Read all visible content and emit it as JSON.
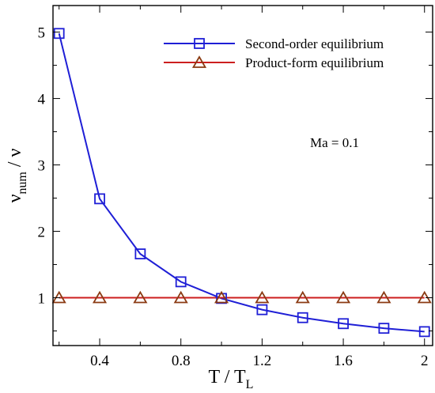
{
  "chart_data": {
    "type": "line",
    "xlabel": {
      "main": "T / T",
      "sub": "L"
    },
    "ylabel": {
      "main": "ν",
      "sub": "num",
      "rest": " / ν"
    },
    "xlim": [
      0.17,
      2.04
    ],
    "ylim": [
      0.28,
      5.4
    ],
    "xticks": [
      0.4,
      0.8,
      1.2,
      1.6,
      2
    ],
    "xtick_labels": [
      "0.4",
      "0.8",
      "1.2",
      "1.6",
      "2"
    ],
    "yticks": [
      1,
      2,
      3,
      4,
      5
    ],
    "ytick_labels": [
      "1",
      "2",
      "3",
      "4",
      "5"
    ],
    "grid": false,
    "legend_position": "top-right",
    "annotation": "Ma = 0.1",
    "series": [
      {
        "name": "Second-order equilibrium",
        "color": "#1f1fd6",
        "marker": "square",
        "x": [
          0.2,
          0.4,
          0.6,
          0.8,
          1.0,
          1.2,
          1.4,
          1.6,
          1.8,
          2.0
        ],
        "y": [
          4.98,
          2.49,
          1.66,
          1.24,
          0.99,
          0.82,
          0.7,
          0.61,
          0.54,
          0.49
        ]
      },
      {
        "name": "Product-form equilibrium",
        "color": "#cc1f1f",
        "marker_color": "#8a3a12",
        "marker": "triangle",
        "x": [
          0.2,
          0.4,
          0.6,
          0.8,
          1.0,
          1.2,
          1.4,
          1.6,
          1.8,
          2.0
        ],
        "y": [
          1.0,
          1.0,
          1.0,
          1.0,
          1.0,
          1.0,
          1.0,
          1.0,
          1.0,
          1.0
        ]
      }
    ]
  }
}
